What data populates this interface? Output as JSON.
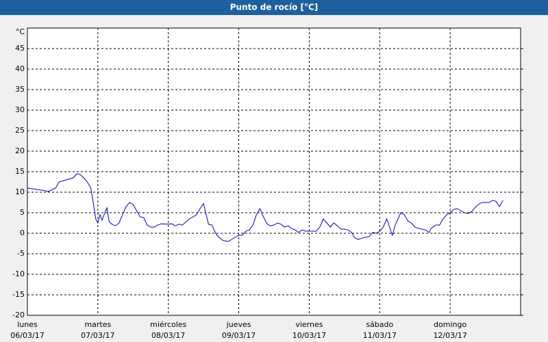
{
  "chart_data": {
    "type": "line",
    "title": "Punto de rocío [°C]",
    "y_unit": "°C",
    "xlim": [
      0,
      7
    ],
    "ylim": [
      -20,
      50
    ],
    "yticks": [
      -20,
      -15,
      -10,
      -5,
      0,
      5,
      10,
      15,
      20,
      25,
      30,
      35,
      40,
      45
    ],
    "xticks": [
      {
        "value": 0,
        "label": "lunes",
        "sublabel": "06/03/17"
      },
      {
        "value": 1,
        "label": "martes",
        "sublabel": "07/03/17"
      },
      {
        "value": 2,
        "label": "miércoles",
        "sublabel": "08/03/17"
      },
      {
        "value": 3,
        "label": "jueves",
        "sublabel": "09/03/17"
      },
      {
        "value": 4,
        "label": "viernes",
        "sublabel": "10/03/17"
      },
      {
        "value": 5,
        "label": "sábado",
        "sublabel": "11/03/17"
      },
      {
        "value": 6,
        "label": "domingo",
        "sublabel": "12/03/17"
      }
    ],
    "grid": true,
    "x": [
      0,
      0.1,
      0.2,
      0.3,
      0.4,
      0.45,
      0.55,
      0.65,
      0.7,
      0.75,
      0.8,
      0.85,
      0.9,
      0.93,
      0.97,
      1.0,
      1.03,
      1.06,
      1.1,
      1.13,
      1.16,
      1.2,
      1.25,
      1.3,
      1.35,
      1.4,
      1.45,
      1.5,
      1.55,
      1.6,
      1.65,
      1.7,
      1.75,
      1.8,
      1.85,
      1.9,
      2.0,
      2.05,
      2.1,
      2.15,
      2.2,
      2.3,
      2.4,
      2.45,
      2.5,
      2.53,
      2.57,
      2.62,
      2.67,
      2.72,
      2.78,
      2.85,
      2.9,
      2.95,
      3.0,
      3.05,
      3.1,
      3.15,
      3.2,
      3.25,
      3.3,
      3.35,
      3.4,
      3.45,
      3.5,
      3.55,
      3.6,
      3.65,
      3.7,
      3.75,
      3.8,
      3.85,
      3.9,
      3.95,
      4.0,
      4.1,
      4.15,
      4.2,
      4.25,
      4.3,
      4.35,
      4.4,
      4.45,
      4.5,
      4.55,
      4.6,
      4.65,
      4.7,
      4.75,
      4.8,
      4.85,
      4.9,
      4.95,
      5.0,
      5.05,
      5.1,
      5.15,
      5.18,
      5.22,
      5.3,
      5.35,
      5.4,
      5.45,
      5.5,
      5.55,
      5.6,
      5.65,
      5.7,
      5.73,
      5.8,
      5.85,
      5.9,
      5.95,
      6.0,
      6.05,
      6.1,
      6.15,
      6.2,
      6.25,
      6.3,
      6.35,
      6.4,
      6.45,
      6.5,
      6.55,
      6.6,
      6.65,
      6.7,
      6.75
    ],
    "series": [
      {
        "color": "#0000b4",
        "values": [
          11,
          10.8,
          10.5,
          10.2,
          11,
          12.5,
          13,
          13.5,
          14.5,
          14.3,
          13.5,
          12.5,
          11,
          8,
          3.5,
          2.5,
          4.5,
          3.2,
          5,
          6.2,
          2.8,
          2.2,
          1.8,
          2.5,
          4.5,
          6.5,
          7.5,
          7,
          5.5,
          4,
          3.8,
          2,
          1.5,
          1.5,
          2,
          2.3,
          2.2,
          2.3,
          1.8,
          2.2,
          2,
          3.5,
          4.5,
          6,
          7.2,
          5,
          2.2,
          2,
          0,
          -1,
          -1.8,
          -2,
          -1.5,
          -1,
          -0.5,
          -0.5,
          0.5,
          0.8,
          2,
          4.5,
          6,
          4,
          2.3,
          1.8,
          2,
          2.5,
          2.2,
          1.5,
          1.8,
          1.2,
          0.8,
          0.2,
          0.8,
          0.5,
          0.5,
          0.5,
          1.5,
          3.5,
          2.5,
          1.5,
          2.5,
          1.8,
          1,
          1,
          0.8,
          0.2,
          -1.2,
          -1.5,
          -1.2,
          -1,
          -0.8,
          0.2,
          0,
          0.5,
          1.5,
          3.5,
          1,
          -0.5,
          2,
          5,
          4.5,
          3,
          2.5,
          1.5,
          1.2,
          1,
          0.8,
          0.2,
          1.2,
          2,
          2,
          3.5,
          4.5,
          5,
          5.8,
          6,
          5.5,
          5,
          4.8,
          5.2,
          6.2,
          7,
          7.5,
          7.5,
          7.5,
          8,
          7.8,
          6.5,
          8
        ]
      }
    ]
  }
}
